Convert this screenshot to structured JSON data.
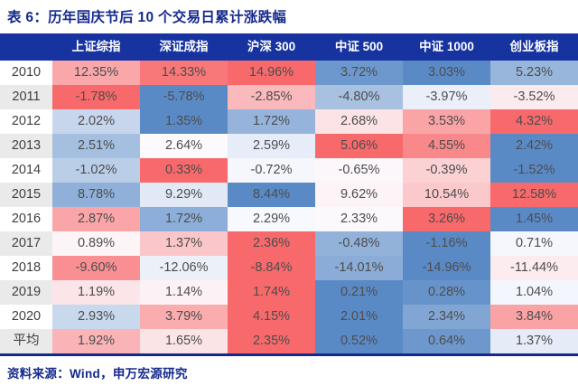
{
  "title": "表 6：历年国庆节后 10 个交易日累计涨跌幅",
  "source": "资料来源：Wind，申万宏源研究",
  "table": {
    "corner_label": "",
    "columns": [
      "上证综指",
      "深证成指",
      "沪深 300",
      "中证 500",
      "中证 1000",
      "创业板指"
    ],
    "row_labels": [
      "2010",
      "2011",
      "2012",
      "2013",
      "2014",
      "2015",
      "2016",
      "2017",
      "2018",
      "2019",
      "2020",
      "平均"
    ],
    "value_suffix": "%"
  },
  "colors": {
    "navy_text": "#14298C",
    "header_bg": "#1733A0",
    "header_text": "#FFFFFF",
    "row_stripe": "#EAEAEA",
    "cell_text": "#4D4D4D",
    "scale_min": "#5A8AC6",
    "scale_mid": "#FCFCFF",
    "scale_max": "#F8696B"
  },
  "chart_data": {
    "type": "heatmap",
    "title": "表 6：历年国庆节后 10 个交易日累计涨跌幅",
    "categories": [
      "2010",
      "2011",
      "2012",
      "2013",
      "2014",
      "2015",
      "2016",
      "2017",
      "2018",
      "2019",
      "2020",
      "平均"
    ],
    "series": [
      {
        "name": "上证综指",
        "values": [
          12.35,
          -1.78,
          2.02,
          2.51,
          -1.02,
          8.78,
          2.87,
          0.89,
          -9.6,
          1.19,
          2.93,
          1.92
        ]
      },
      {
        "name": "深证成指",
        "values": [
          14.33,
          -5.78,
          1.35,
          2.64,
          0.33,
          9.29,
          1.72,
          1.37,
          -12.06,
          1.14,
          3.79,
          1.65
        ]
      },
      {
        "name": "沪深 300",
        "values": [
          14.96,
          -2.85,
          1.72,
          2.59,
          -0.72,
          8.44,
          2.29,
          2.36,
          -8.84,
          1.74,
          4.15,
          2.35
        ]
      },
      {
        "name": "中证 500",
        "values": [
          3.72,
          -4.8,
          2.68,
          5.06,
          -0.65,
          9.62,
          2.33,
          -0.48,
          -14.01,
          0.21,
          2.01,
          0.52
        ]
      },
      {
        "name": "中证 1000",
        "values": [
          3.03,
          -3.97,
          3.53,
          4.55,
          -0.39,
          10.54,
          3.26,
          -1.16,
          -14.96,
          0.28,
          2.34,
          0.64
        ]
      },
      {
        "name": "创业板指",
        "values": [
          5.23,
          -3.52,
          4.32,
          2.42,
          -1.52,
          12.58,
          1.45,
          0.71,
          -11.44,
          1.04,
          3.84,
          1.37
        ]
      }
    ],
    "unit": "%",
    "legend_position": "none",
    "color_scale": {
      "min_color": "#5A8AC6",
      "mid_color": "#FCFCFF",
      "max_color": "#F8696B",
      "midpoint": "per-row 50th percentile",
      "scope": "per-row"
    }
  }
}
